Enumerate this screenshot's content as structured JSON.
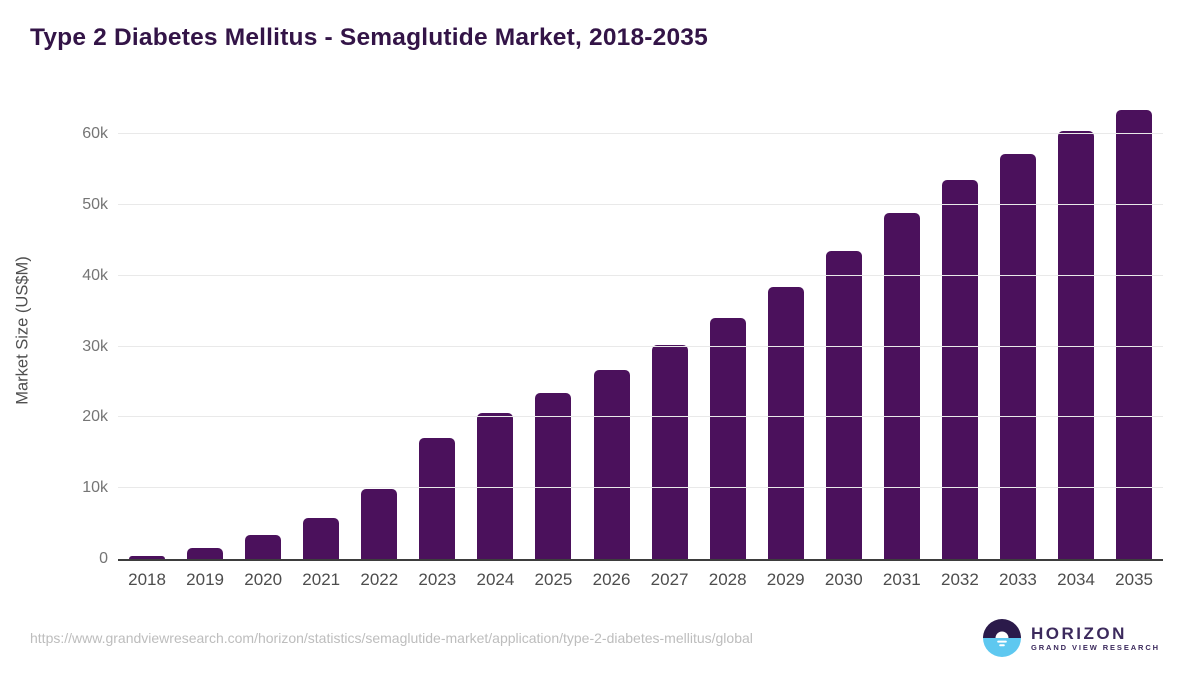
{
  "title": "Type 2 Diabetes Mellitus - Semaglutide Market, 2018-2035",
  "footer": {
    "source_url": "https://www.grandviewresearch.com/horizon/statistics/semaglutide-market/application/type-2-diabetes-mellitus/global"
  },
  "logo": {
    "icon": "horizon-sun-circle-icon",
    "name": "HORIZON",
    "subtitle": "GRAND VIEW RESEARCH",
    "colors": {
      "dark_half": "#2b1a4a",
      "light_half": "#5ec8f0",
      "text": "#3c2a5d"
    }
  },
  "colors": {
    "bar": "#4b115c",
    "title": "#331447",
    "gridline": "#e9e9e9",
    "axis_line": "#3d3d3d",
    "tick_label": "#4d4d4d",
    "url_text": "#bdbdbd"
  },
  "chart_data": {
    "type": "bar",
    "title": "Type 2 Diabetes Mellitus - Semaglutide Market, 2018-2035",
    "xlabel": "",
    "ylabel": "Market Size (US$M)",
    "categories": [
      "2018",
      "2019",
      "2020",
      "2021",
      "2022",
      "2023",
      "2024",
      "2025",
      "2026",
      "2027",
      "2028",
      "2029",
      "2030",
      "2031",
      "2032",
      "2033",
      "2034",
      "2035"
    ],
    "values": [
      450,
      1550,
      3450,
      5800,
      9850,
      17050,
      20600,
      23400,
      26700,
      30250,
      34100,
      38500,
      43550,
      48850,
      53600,
      57250,
      60450,
      63500
    ],
    "ylim": [
      0,
      65000
    ],
    "yticks": [
      0,
      10000,
      20000,
      30000,
      40000,
      50000,
      60000
    ],
    "ytick_labels": [
      "0",
      "10k",
      "20k",
      "30k",
      "40k",
      "50k",
      "60k"
    ],
    "grid": "horizontal",
    "legend": "none",
    "bar_color": "#4b115c"
  }
}
